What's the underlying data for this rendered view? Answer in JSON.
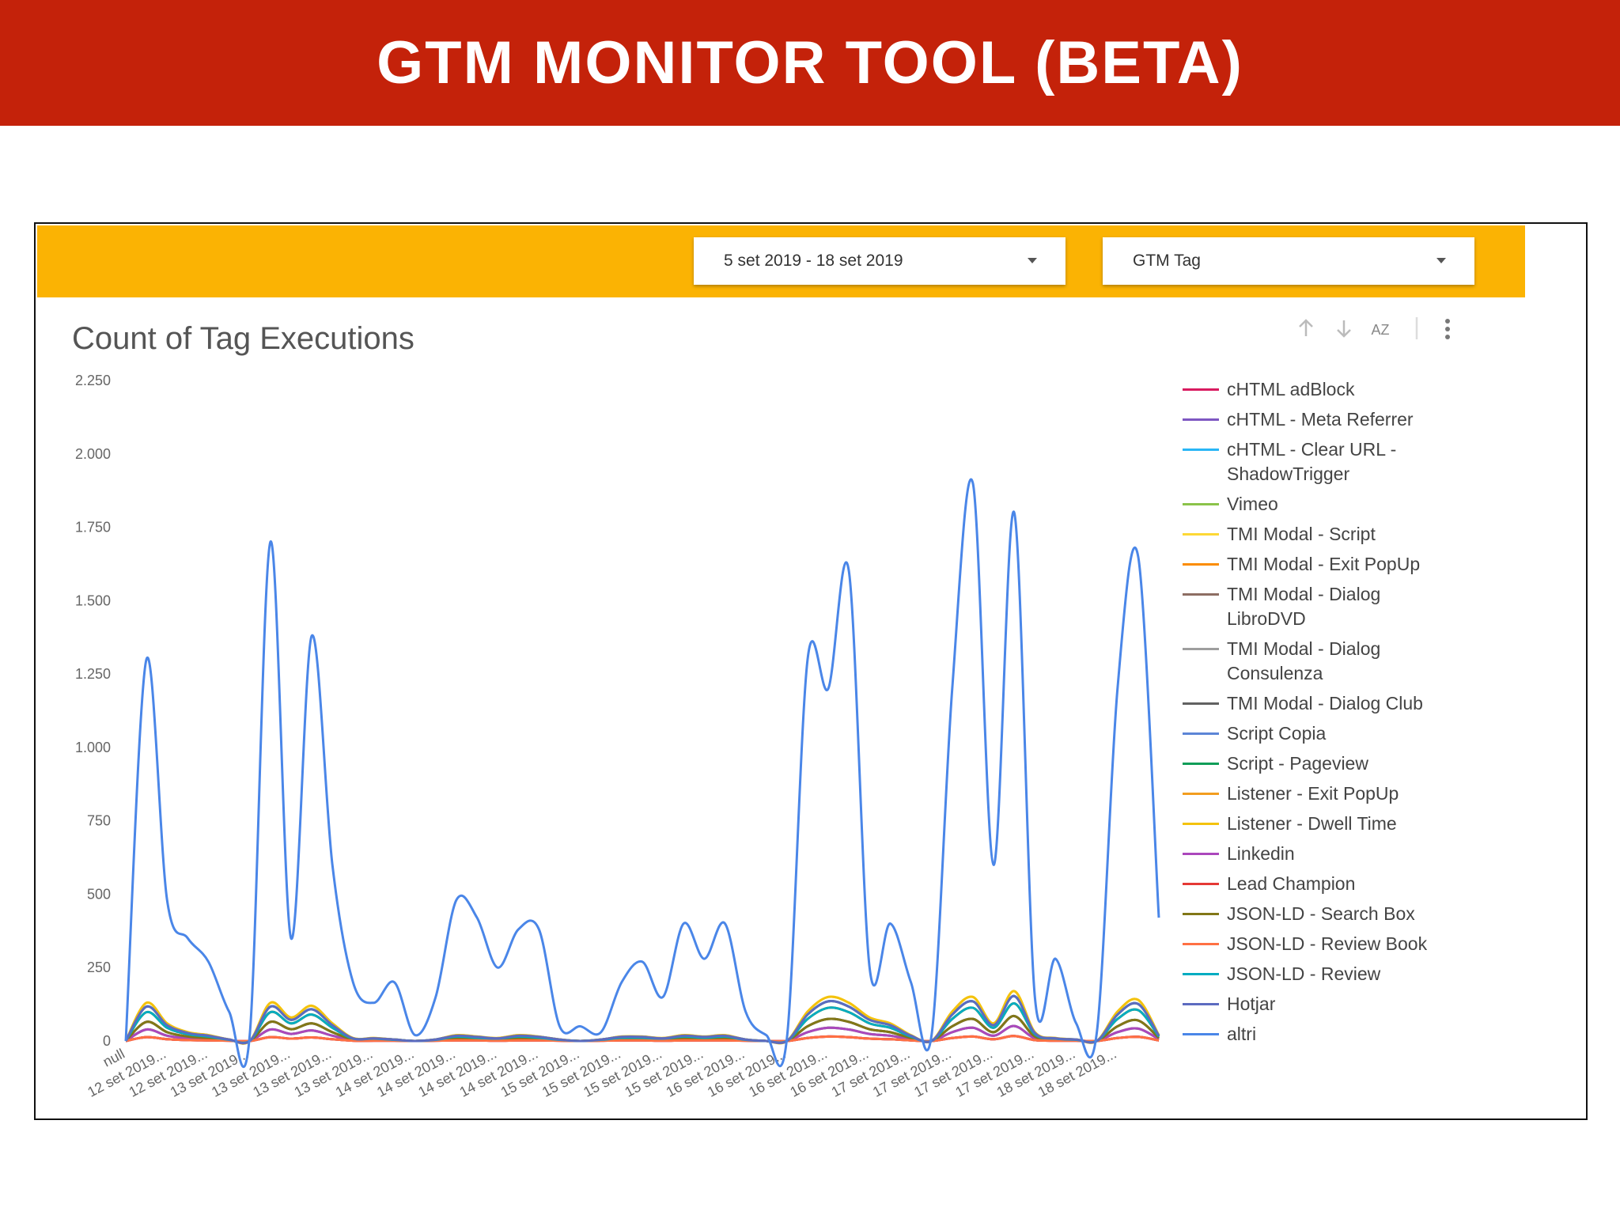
{
  "header": {
    "title": "GTM MONITOR TOOL (BETA)"
  },
  "controls": {
    "date_range": "5 set 2019 - 18 set 2019",
    "tag_filter": "GTM Tag",
    "sort_label": "AZ"
  },
  "chart_data": {
    "type": "line",
    "title": "Count of Tag Executions",
    "categories": [
      "null",
      null,
      "12 set 2019...",
      null,
      "12 set 2019...",
      null,
      "13 set 2019...",
      null,
      "13 set 2019...",
      null,
      "13 set 2019...",
      null,
      "13 set 2019...",
      null,
      "14 set 2019...",
      null,
      "14 set 2019...",
      null,
      "14 set 2019...",
      null,
      "14 set 2019...",
      null,
      "15 set 2019...",
      null,
      "15 set 2019...",
      null,
      "15 set 2019...",
      null,
      "15 set 2019...",
      null,
      "16 set 2019...",
      null,
      "16 set 2019...",
      null,
      "16 set 2019...",
      null,
      "16 set 2019...",
      null,
      "17 set 2019...",
      null,
      "17 set 2019...",
      null,
      "17 set 2019...",
      null,
      "17 set 2019...",
      null,
      "18 set 2019...",
      null,
      "18 set 2019...",
      null,
      null
    ],
    "ylim": [
      0,
      2250
    ],
    "yticks": [
      0,
      250,
      500,
      750,
      {
        "value": 1000,
        "label": "1.000"
      },
      {
        "value": 1250,
        "label": "1.250"
      },
      {
        "value": 1500,
        "label": "1.500"
      },
      {
        "value": 1750,
        "label": "1.750"
      },
      {
        "value": 2000,
        "label": "2.000"
      },
      {
        "value": 2250,
        "label": "2.250"
      }
    ],
    "series": [
      {
        "name": "cHTML adBlock",
        "color": "#d81b60",
        "values": [
          0,
          13,
          6,
          3,
          2,
          1,
          0,
          13,
          8,
          12,
          6,
          1,
          1,
          1,
          0,
          1,
          2,
          2,
          1,
          2,
          2,
          1,
          0,
          1,
          2,
          2,
          1,
          2,
          2,
          2,
          1,
          0,
          0,
          10,
          15,
          13,
          8,
          6,
          2,
          0,
          10,
          15,
          6,
          17,
          3,
          1,
          1,
          0,
          10,
          14,
          2
        ]
      },
      {
        "name": "cHTML - Meta Referrer",
        "color": "#7e57c2",
        "values": [
          0,
          13,
          6,
          3,
          2,
          1,
          0,
          13,
          8,
          12,
          6,
          1,
          1,
          1,
          0,
          1,
          2,
          2,
          1,
          2,
          2,
          1,
          0,
          1,
          2,
          2,
          1,
          2,
          2,
          2,
          1,
          0,
          0,
          10,
          15,
          13,
          8,
          6,
          2,
          0,
          10,
          15,
          6,
          17,
          3,
          1,
          1,
          0,
          10,
          14,
          2
        ]
      },
      {
        "name": "cHTML - Clear URL - ShadowTrigger",
        "color": "#29b6f6",
        "values": [
          0,
          39,
          18,
          9,
          6,
          2,
          0,
          39,
          24,
          36,
          18,
          3,
          3,
          2,
          0,
          2,
          6,
          5,
          3,
          6,
          5,
          2,
          0,
          2,
          5,
          5,
          3,
          6,
          5,
          6,
          2,
          0,
          0,
          30,
          45,
          39,
          24,
          18,
          6,
          0,
          30,
          45,
          18,
          51,
          9,
          3,
          2,
          0,
          30,
          42,
          6
        ]
      },
      {
        "name": "Vimeo",
        "color": "#8bc34a",
        "values": [
          0,
          39,
          18,
          9,
          6,
          2,
          0,
          39,
          24,
          36,
          18,
          3,
          3,
          2,
          0,
          2,
          6,
          5,
          3,
          6,
          5,
          2,
          0,
          2,
          5,
          5,
          3,
          6,
          5,
          6,
          2,
          0,
          0,
          30,
          45,
          39,
          24,
          18,
          6,
          0,
          30,
          45,
          18,
          51,
          9,
          3,
          2,
          0,
          30,
          42,
          6
        ]
      },
      {
        "name": "TMI Modal - Script",
        "color": "#fdd835",
        "values": [
          0,
          130,
          60,
          30,
          20,
          5,
          0,
          130,
          80,
          120,
          60,
          10,
          10,
          5,
          0,
          5,
          20,
          15,
          10,
          20,
          15,
          5,
          0,
          5,
          15,
          15,
          10,
          20,
          15,
          20,
          5,
          0,
          0,
          100,
          150,
          130,
          80,
          60,
          20,
          0,
          100,
          150,
          60,
          170,
          30,
          10,
          5,
          0,
          100,
          140,
          20
        ]
      },
      {
        "name": "TMI Modal - Exit PopUp",
        "color": "#fb8c00",
        "values": [
          0,
          98,
          45,
          23,
          15,
          4,
          0,
          98,
          60,
          90,
          45,
          8,
          8,
          4,
          0,
          4,
          15,
          11,
          8,
          15,
          11,
          4,
          0,
          4,
          11,
          11,
          8,
          15,
          11,
          15,
          4,
          0,
          0,
          75,
          113,
          98,
          60,
          45,
          15,
          0,
          75,
          113,
          45,
          128,
          23,
          8,
          4,
          0,
          75,
          105,
          15
        ]
      },
      {
        "name": "TMI Modal - Dialog LibroDVD",
        "color": "#8d6e63",
        "values": [
          0,
          65,
          30,
          15,
          10,
          3,
          0,
          65,
          40,
          60,
          30,
          5,
          5,
          3,
          0,
          3,
          10,
          8,
          5,
          10,
          8,
          3,
          0,
          3,
          8,
          8,
          5,
          10,
          8,
          10,
          3,
          0,
          0,
          50,
          75,
          65,
          40,
          30,
          10,
          0,
          50,
          75,
          30,
          85,
          15,
          5,
          3,
          0,
          50,
          70,
          10
        ]
      },
      {
        "name": "TMI Modal - Dialog Consulenza",
        "color": "#9e9e9e",
        "values": [
          0,
          39,
          18,
          9,
          6,
          2,
          0,
          39,
          24,
          36,
          18,
          3,
          3,
          2,
          0,
          2,
          6,
          5,
          3,
          6,
          5,
          2,
          0,
          2,
          5,
          5,
          3,
          6,
          5,
          6,
          2,
          0,
          0,
          30,
          45,
          39,
          24,
          18,
          6,
          0,
          30,
          45,
          18,
          51,
          9,
          3,
          2,
          0,
          30,
          42,
          6
        ]
      },
      {
        "name": "TMI Modal - Dialog Club",
        "color": "#616161",
        "values": [
          0,
          65,
          30,
          15,
          10,
          3,
          0,
          65,
          40,
          60,
          30,
          5,
          5,
          3,
          0,
          3,
          10,
          8,
          5,
          10,
          8,
          3,
          0,
          3,
          8,
          8,
          5,
          10,
          8,
          10,
          3,
          0,
          0,
          50,
          75,
          65,
          40,
          30,
          10,
          0,
          50,
          75,
          30,
          85,
          15,
          5,
          3,
          0,
          50,
          70,
          10
        ]
      },
      {
        "name": "Script Copia",
        "color": "#5c85d6",
        "values": [
          0,
          117,
          54,
          27,
          18,
          5,
          0,
          117,
          72,
          108,
          54,
          9,
          9,
          5,
          0,
          5,
          18,
          14,
          9,
          18,
          14,
          5,
          0,
          5,
          14,
          14,
          9,
          18,
          14,
          18,
          5,
          0,
          0,
          90,
          135,
          117,
          72,
          54,
          18,
          0,
          90,
          135,
          54,
          153,
          27,
          9,
          5,
          0,
          90,
          126,
          18
        ]
      },
      {
        "name": "Script - Pageview",
        "color": "#0f9d58",
        "values": [
          0,
          117,
          54,
          27,
          18,
          5,
          0,
          117,
          72,
          108,
          54,
          9,
          9,
          5,
          0,
          5,
          18,
          14,
          9,
          18,
          14,
          5,
          0,
          5,
          14,
          14,
          9,
          18,
          14,
          18,
          5,
          0,
          0,
          90,
          135,
          117,
          72,
          54,
          18,
          0,
          90,
          135,
          54,
          153,
          27,
          9,
          5,
          0,
          90,
          126,
          18
        ]
      },
      {
        "name": "Listener - Exit PopUp",
        "color": "#f29d1f",
        "values": [
          0,
          98,
          45,
          23,
          15,
          4,
          0,
          98,
          60,
          90,
          45,
          8,
          8,
          4,
          0,
          4,
          15,
          11,
          8,
          15,
          11,
          4,
          0,
          4,
          11,
          11,
          8,
          15,
          11,
          15,
          4,
          0,
          0,
          75,
          113,
          98,
          60,
          45,
          15,
          0,
          75,
          113,
          45,
          128,
          23,
          8,
          4,
          0,
          75,
          105,
          15
        ]
      },
      {
        "name": "Listener - Dwell Time",
        "color": "#f4c20d",
        "values": [
          0,
          130,
          60,
          30,
          20,
          5,
          0,
          130,
          80,
          120,
          60,
          10,
          10,
          5,
          0,
          5,
          20,
          15,
          10,
          20,
          15,
          5,
          0,
          5,
          15,
          15,
          10,
          20,
          15,
          20,
          5,
          0,
          0,
          100,
          150,
          130,
          80,
          60,
          20,
          0,
          100,
          150,
          60,
          170,
          30,
          10,
          5,
          0,
          100,
          140,
          20
        ]
      },
      {
        "name": "Linkedin",
        "color": "#ab47bc",
        "values": [
          0,
          39,
          18,
          9,
          6,
          2,
          0,
          39,
          24,
          36,
          18,
          3,
          3,
          2,
          0,
          2,
          6,
          5,
          3,
          6,
          5,
          2,
          0,
          2,
          5,
          5,
          3,
          6,
          5,
          6,
          2,
          0,
          0,
          30,
          45,
          39,
          24,
          18,
          6,
          0,
          30,
          45,
          18,
          51,
          9,
          3,
          2,
          0,
          30,
          42,
          6
        ]
      },
      {
        "name": "Lead Champion",
        "color": "#e53935",
        "values": [
          0,
          13,
          6,
          3,
          2,
          1,
          0,
          13,
          8,
          12,
          6,
          1,
          1,
          1,
          0,
          1,
          2,
          2,
          1,
          2,
          2,
          1,
          0,
          1,
          2,
          2,
          1,
          2,
          2,
          2,
          1,
          0,
          0,
          10,
          15,
          13,
          8,
          6,
          2,
          0,
          10,
          15,
          6,
          17,
          3,
          1,
          1,
          0,
          10,
          14,
          2
        ]
      },
      {
        "name": "JSON-LD - Search Box",
        "color": "#827717",
        "values": [
          0,
          65,
          30,
          15,
          10,
          3,
          0,
          65,
          40,
          60,
          30,
          5,
          5,
          3,
          0,
          3,
          10,
          8,
          5,
          10,
          8,
          3,
          0,
          3,
          8,
          8,
          5,
          10,
          8,
          10,
          3,
          0,
          0,
          50,
          75,
          65,
          40,
          30,
          10,
          0,
          50,
          75,
          30,
          85,
          15,
          5,
          3,
          0,
          50,
          70,
          10
        ]
      },
      {
        "name": "JSON-LD - Review Book",
        "color": "#ff7043",
        "values": [
          0,
          13,
          6,
          3,
          2,
          1,
          0,
          13,
          8,
          12,
          6,
          1,
          1,
          1,
          0,
          1,
          2,
          2,
          1,
          2,
          2,
          1,
          0,
          1,
          2,
          2,
          1,
          2,
          2,
          2,
          1,
          0,
          0,
          10,
          15,
          13,
          8,
          6,
          2,
          0,
          10,
          15,
          6,
          17,
          3,
          1,
          1,
          0,
          10,
          14,
          2
        ]
      },
      {
        "name": "JSON-LD - Review",
        "color": "#00acc1",
        "values": [
          0,
          98,
          45,
          23,
          15,
          4,
          0,
          98,
          60,
          90,
          45,
          8,
          8,
          4,
          0,
          4,
          15,
          11,
          8,
          15,
          11,
          4,
          0,
          4,
          11,
          11,
          8,
          15,
          11,
          15,
          4,
          0,
          0,
          75,
          113,
          98,
          60,
          45,
          15,
          0,
          75,
          113,
          45,
          128,
          23,
          8,
          4,
          0,
          75,
          105,
          15
        ]
      },
      {
        "name": "Hotjar",
        "color": "#5c6bc0",
        "values": [
          0,
          117,
          54,
          27,
          18,
          5,
          0,
          117,
          72,
          108,
          54,
          9,
          9,
          5,
          0,
          5,
          18,
          14,
          9,
          18,
          14,
          5,
          0,
          5,
          14,
          14,
          9,
          18,
          14,
          18,
          5,
          0,
          0,
          90,
          135,
          117,
          72,
          54,
          18,
          0,
          90,
          135,
          54,
          153,
          27,
          9,
          5,
          0,
          90,
          126,
          18
        ]
      },
      {
        "name": "altri",
        "color": "#4a86e8",
        "values": [
          0,
          1300,
          480,
          350,
          270,
          100,
          20,
          1700,
          350,
          1380,
          600,
          200,
          130,
          200,
          20,
          150,
          480,
          420,
          250,
          380,
          380,
          50,
          50,
          30,
          200,
          270,
          150,
          400,
          280,
          400,
          100,
          20,
          10,
          1300,
          1200,
          1600,
          250,
          400,
          200,
          20,
          1200,
          1900,
          600,
          1800,
          150,
          280,
          60,
          30,
          1200,
          1650,
          420
        ]
      }
    ]
  }
}
